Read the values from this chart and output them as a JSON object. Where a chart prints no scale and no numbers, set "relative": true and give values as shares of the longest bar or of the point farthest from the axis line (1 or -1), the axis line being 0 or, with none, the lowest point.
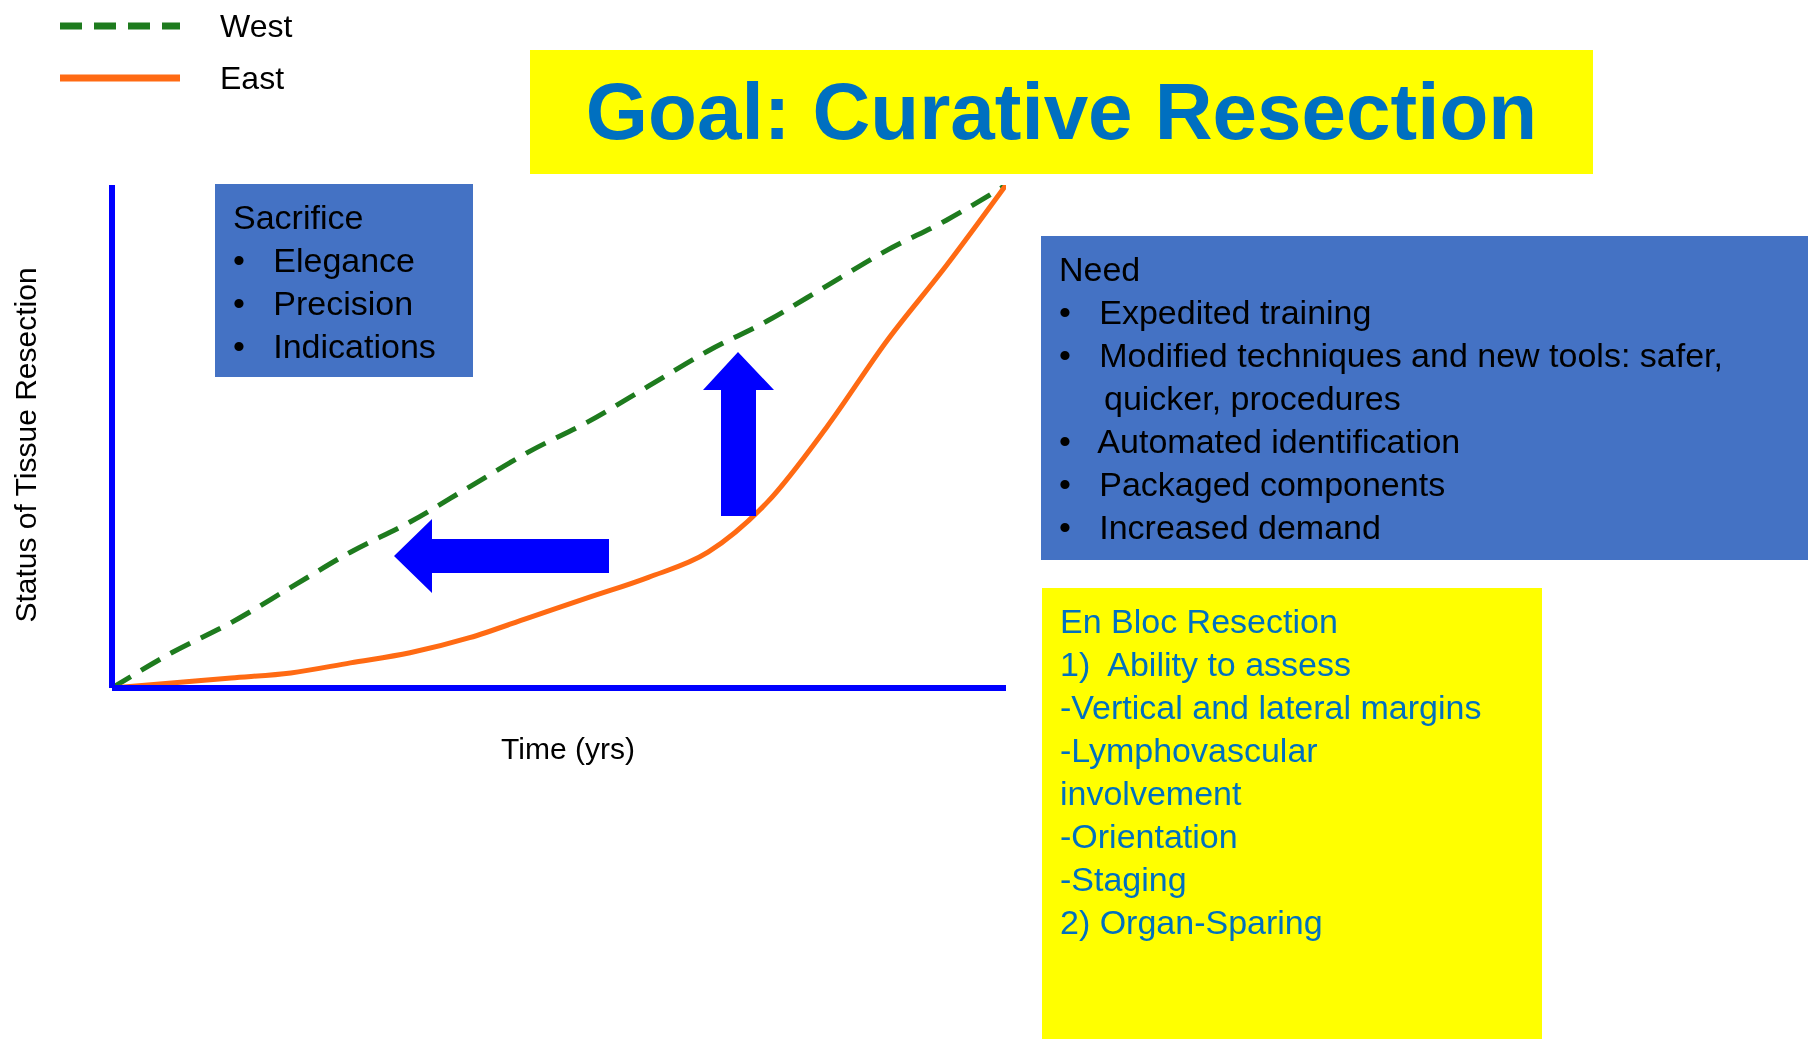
{
  "chart_data": {
    "type": "line",
    "title": "Goal: Curative Resection",
    "xlabel": "Time (yrs)",
    "ylabel": "Status of Tissue Resection",
    "relative": true,
    "legend": "top left",
    "categories": [
      null,
      null,
      null,
      null,
      null,
      null,
      null,
      null,
      null,
      null,
      null,
      null,
      null,
      null,
      null,
      null
    ],
    "series": [
      {
        "name": "West",
        "color": "#1e7b1e",
        "line_style": "dashed",
        "values": [
          0,
          0.07,
          0.13,
          0.2,
          0.27,
          0.33,
          0.4,
          0.47,
          0.53,
          0.6,
          0.67,
          0.73,
          0.8,
          0.87,
          0.93,
          1
        ]
      },
      {
        "name": "East",
        "color": "#ff6a13",
        "line_style": "solid",
        "values": [
          0,
          0.01,
          0.02,
          0.03,
          0.05,
          0.07,
          0.1,
          0.14,
          0.18,
          0.22,
          0.27,
          0.37,
          0.52,
          0.69,
          0.84,
          1
        ]
      }
    ],
    "annotations": [
      "Sacrifice\n•   Elegance\n•   Precision\n•   Indications",
      "Need\n•   Expedited training\n•   Modified techniques and new tools: safer, quicker, procedures\n•   Automated identification\n•   Packaged components\n•   Increased demand",
      "En Bloc Resection\n1)  Ability to assess\n-Vertical and lateral margins\n-Lymphovascular\ninvolvement\n-Orientation\n-Staging\n2) Organ-Sparing"
    ]
  }
}
